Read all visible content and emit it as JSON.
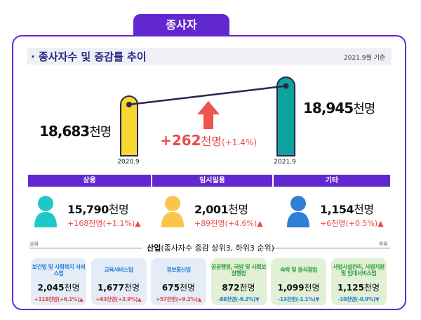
{
  "tab_title": "종사자",
  "section_title": "· 종사자수 및 증감률 추이",
  "basis": "2021.9월 기준",
  "unit": "천명",
  "chart_data": {
    "type": "bar",
    "categories": [
      "2020.9",
      "2021.9"
    ],
    "values": [
      18683,
      18945
    ],
    "value_labels": [
      "18,683",
      "18,945"
    ],
    "unit": "천명",
    "change": "+262",
    "change_pct": "(+1.4%)",
    "colors": [
      "#f7d730",
      "#0fa39e"
    ]
  },
  "types": [
    {
      "label": "상용",
      "value": "15,790",
      "change": "+168천명(+1.1%)",
      "direction": "up",
      "color": "#1ec8c8"
    },
    {
      "label": "임시일용",
      "value": "2,001",
      "change": "+89천명(+4.6%)",
      "direction": "up",
      "color": "#fbc54c"
    },
    {
      "label": "기타",
      "value": "1,154",
      "change": "+6천명(+0.5%)",
      "direction": "up",
      "color": "#2e7fd6"
    }
  ],
  "industry": {
    "title": "산업",
    "subtitle": "(종사자수 증감 상위3, 하위3 순위)",
    "top_label": "상위",
    "bottom_label": "하위",
    "items": [
      {
        "name": "보건업 및 사회복지 서비스업",
        "value": "2,045",
        "change": "+118천명(+6.1%)",
        "direction": "up"
      },
      {
        "name": "교육서비스업",
        "value": "1,677",
        "change": "+63천명(+3.9%)",
        "direction": "up"
      },
      {
        "name": "정보통신업",
        "value": "675",
        "change": "+57천명(+9.2%)",
        "direction": "up"
      },
      {
        "name": "공공행정, 국방 및 사회보장행정",
        "value": "872",
        "change": "-88천명(-9.2%)",
        "direction": "down"
      },
      {
        "name": "숙박 및 음식점업",
        "value": "1,099",
        "change": "-13천명(-1.1%)",
        "direction": "down"
      },
      {
        "name": "사업시설관리, 사업지원 및 임대서비스업",
        "value": "1,125",
        "change": "-10천명(-0.9%)",
        "direction": "down"
      }
    ]
  }
}
